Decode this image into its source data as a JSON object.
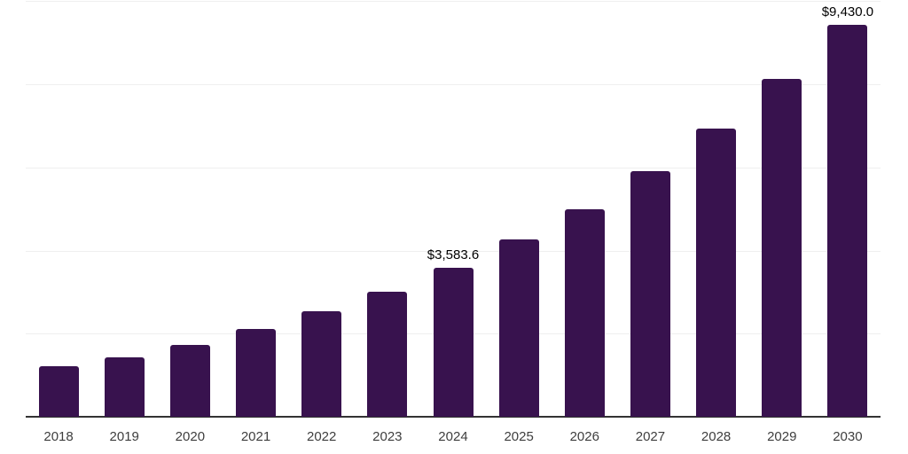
{
  "chart_data": {
    "type": "bar",
    "title": "",
    "xlabel": "",
    "ylabel": "",
    "categories": [
      "2018",
      "2019",
      "2020",
      "2021",
      "2022",
      "2023",
      "2024",
      "2025",
      "2026",
      "2027",
      "2028",
      "2029",
      "2030"
    ],
    "values": [
      1215,
      1420,
      1730,
      2110,
      2540,
      3010,
      3583.6,
      4270,
      5000,
      5910,
      6930,
      8120,
      9430
    ],
    "annotations": [
      {
        "category": "2024",
        "text": "$3,583.6"
      },
      {
        "category": "2030",
        "text": "$9,430.0"
      }
    ],
    "ylim": [
      0,
      10000
    ],
    "gridline_step": 2000,
    "grid": true,
    "y_axis_labels_visible": false,
    "legend_position": "none",
    "colors": {
      "bar": "#38124E",
      "axis_line": "#333333",
      "gridline": "#efefef",
      "tick_label": "#3e3e3e",
      "value_label": "#000000",
      "background": "#ffffff"
    }
  }
}
